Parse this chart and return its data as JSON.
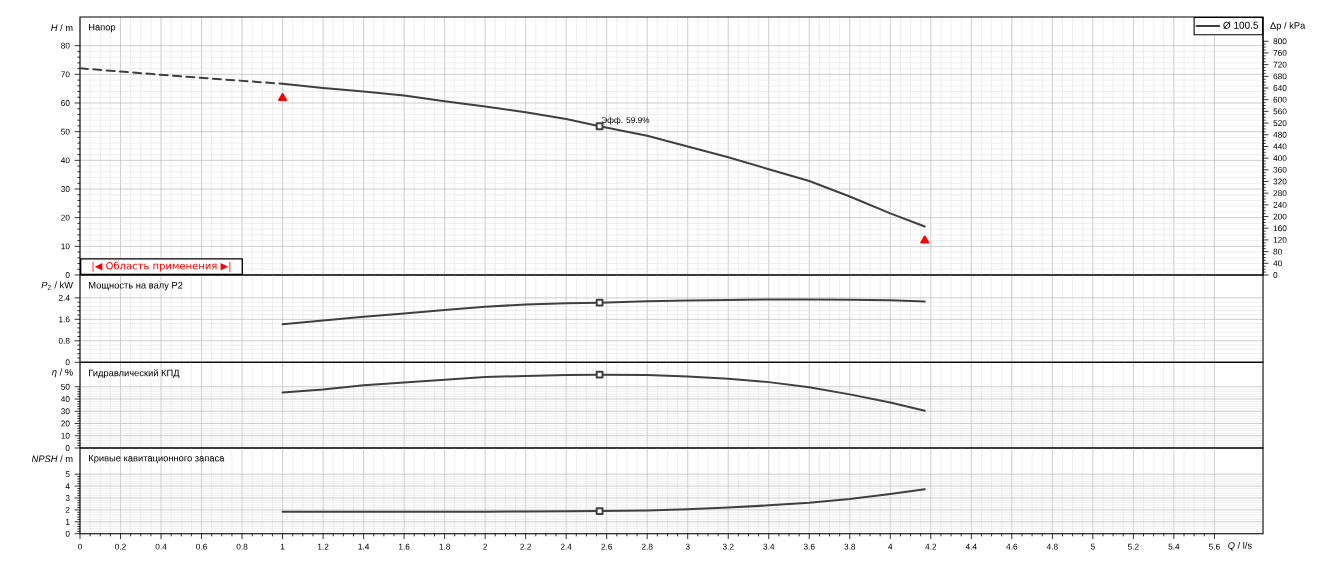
{
  "chart_data": [
    {
      "type": "line",
      "title": "Напор",
      "ylabel": "*H* / m",
      "y2label": "Δp / kPa",
      "xlim": [
        0,
        5.84
      ],
      "ylim": [
        0,
        90
      ],
      "y2lim": [
        0,
        883
      ],
      "xticks": [
        0,
        0.2,
        0.4,
        0.6,
        0.8,
        1,
        1.2,
        1.4,
        1.6,
        1.8,
        2,
        2.2,
        2.4,
        2.6,
        2.8,
        3,
        3.2,
        3.4,
        3.6,
        3.8,
        4,
        4.2,
        4.4,
        4.6,
        4.8,
        5,
        5.2,
        5.4,
        5.6
      ],
      "yticks": [
        0,
        10,
        20,
        30,
        40,
        50,
        60,
        70,
        80
      ],
      "y2ticks": [
        0,
        40,
        80,
        120,
        160,
        200,
        240,
        280,
        320,
        360,
        400,
        440,
        480,
        520,
        560,
        600,
        640,
        680,
        720,
        760,
        800
      ],
      "grid": true,
      "tick_labels": "y",
      "legend": "top right",
      "annotations": [
        {
          "text": "Эфф. 59.9%",
          "x": 2.565,
          "y": 51.9
        },
        "|◀ Область применения ▶|"
      ],
      "series": [
        {
          "name": "Ø 100.5",
          "color": "#404040",
          "x": [
            1.0,
            1.2,
            1.4,
            1.6,
            1.8,
            2.0,
            2.2,
            2.4,
            2.565,
            2.8,
            3.0,
            3.2,
            3.4,
            3.6,
            3.8,
            4.0,
            4.17
          ],
          "values": [
            66.7,
            65.2,
            64.0,
            62.6,
            60.6,
            58.8,
            56.8,
            54.4,
            51.9,
            48.6,
            44.8,
            41.1,
            36.9,
            32.8,
            27.4,
            21.5,
            16.9
          ]
        },
        {
          "type": "line",
          "line_style": "dashed",
          "color": "#404040",
          "x": [
            0,
            0.5,
            1.0
          ],
          "values": [
            72.1,
            69.3,
            66.7
          ]
        },
        {
          "type": "scatter",
          "marker": "square",
          "color": "#404040",
          "x": [
            2.565
          ],
          "values": [
            51.9
          ]
        },
        {
          "type": "scatter",
          "marker": "triangle",
          "color": "#ff0000",
          "x": [
            1.0,
            4.17
          ],
          "values": [
            61.7,
            12.0
          ]
        }
      ]
    },
    {
      "type": "line",
      "title": "Мощность на валу P2",
      "ylabel": "*P*$_{2}$ / kW",
      "xlim": [
        0,
        5.84
      ],
      "ylim": [
        0,
        3.25
      ],
      "xticks": [
        0,
        0.2,
        0.4,
        0.6,
        0.8,
        1,
        1.2,
        1.4,
        1.6,
        1.8,
        2,
        2.2,
        2.4,
        2.6,
        2.8,
        3,
        3.2,
        3.4,
        3.6,
        3.8,
        4,
        4.2,
        4.4,
        4.6,
        4.8,
        5,
        5.2,
        5.4,
        5.6
      ],
      "yticks": [
        0,
        0.8,
        1.6,
        2.4
      ],
      "grid": true,
      "tick_labels": "y",
      "series": [
        {
          "color": "#404040",
          "x": [
            1.0,
            1.2,
            1.4,
            1.6,
            1.8,
            2.0,
            2.2,
            2.4,
            2.565,
            2.8,
            3.0,
            3.2,
            3.4,
            3.6,
            3.8,
            4.0,
            4.17
          ],
          "values": [
            1.42,
            1.56,
            1.7,
            1.82,
            1.95,
            2.07,
            2.15,
            2.2,
            2.22,
            2.27,
            2.3,
            2.32,
            2.34,
            2.34,
            2.33,
            2.31,
            2.26
          ]
        },
        {
          "type": "scatter",
          "marker": "square",
          "color": "#404040",
          "x": [
            2.565
          ],
          "values": [
            2.22
          ]
        }
      ]
    },
    {
      "type": "line",
      "title": "Гидравлический КПД",
      "ylabel": "*η* / %",
      "xlim": [
        0,
        5.84
      ],
      "ylim": [
        0,
        70
      ],
      "xticks": [
        0,
        0.2,
        0.4,
        0.6,
        0.8,
        1,
        1.2,
        1.4,
        1.6,
        1.8,
        2,
        2.2,
        2.4,
        2.6,
        2.8,
        3,
        3.2,
        3.4,
        3.6,
        3.8,
        4,
        4.2,
        4.4,
        4.6,
        4.8,
        5,
        5.2,
        5.4,
        5.6
      ],
      "yticks": [
        0,
        10,
        20,
        30,
        40,
        50
      ],
      "grid": true,
      "tick_labels": "y",
      "series": [
        {
          "color": "#404040",
          "x": [
            1.0,
            1.2,
            1.4,
            1.6,
            1.8,
            2.0,
            2.2,
            2.4,
            2.565,
            2.8,
            3.0,
            3.2,
            3.4,
            3.6,
            3.8,
            4.0,
            4.17
          ],
          "values": [
            45.4,
            47.8,
            51.3,
            53.5,
            55.7,
            57.9,
            58.9,
            59.6,
            59.9,
            59.6,
            58.3,
            56.6,
            53.8,
            49.6,
            43.8,
            37.2,
            30.4
          ]
        },
        {
          "type": "scatter",
          "marker": "square",
          "color": "#404040",
          "x": [
            2.565
          ],
          "values": [
            59.9
          ]
        }
      ]
    },
    {
      "type": "line",
      "title": "Кривые кавитационного запаса",
      "ylabel": "*NPSH* / m",
      "xlabel": "*Q* / l/s",
      "xlim": [
        0,
        5.84
      ],
      "ylim": [
        0,
        7.2
      ],
      "xticks": [
        0,
        0.2,
        0.4,
        0.6,
        0.8,
        1,
        1.2,
        1.4,
        1.6,
        1.8,
        2,
        2.2,
        2.4,
        2.6,
        2.8,
        3,
        3.2,
        3.4,
        3.6,
        3.8,
        4,
        4.2,
        4.4,
        4.6,
        4.8,
        5,
        5.2,
        5.4,
        5.6
      ],
      "yticks": [
        0,
        1,
        2,
        3,
        4,
        5
      ],
      "grid": true,
      "series": [
        {
          "color": "#404040",
          "x": [
            1.0,
            1.2,
            1.4,
            1.6,
            1.8,
            2.0,
            2.2,
            2.4,
            2.565,
            2.8,
            3.0,
            3.2,
            3.4,
            3.6,
            3.8,
            4.0,
            4.17
          ],
          "values": [
            1.85,
            1.85,
            1.85,
            1.85,
            1.85,
            1.85,
            1.87,
            1.88,
            1.9,
            1.95,
            2.05,
            2.2,
            2.38,
            2.6,
            2.92,
            3.33,
            3.73
          ]
        },
        {
          "type": "scatter",
          "marker": "square",
          "color": "#404040",
          "x": [
            2.565
          ],
          "values": [
            1.9
          ]
        }
      ]
    }
  ]
}
